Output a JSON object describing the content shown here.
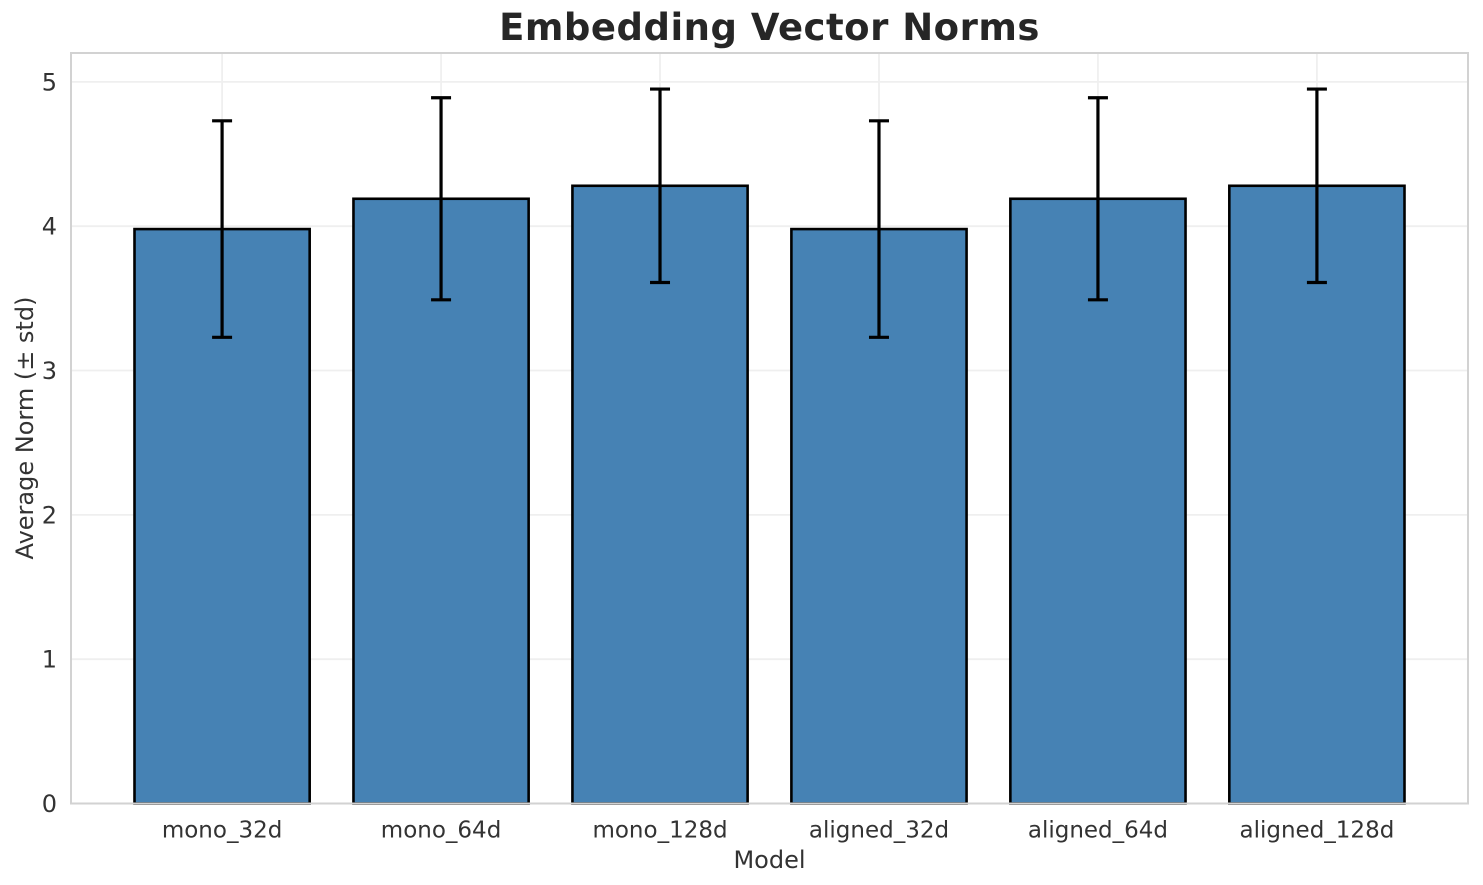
{
  "chart_data": {
    "type": "bar",
    "title": "Embedding Vector Norms",
    "xlabel": "Model",
    "ylabel": "Average Norm (± std)",
    "categories": [
      "mono_32d",
      "mono_64d",
      "mono_128d",
      "aligned_32d",
      "aligned_64d",
      "aligned_128d"
    ],
    "x": [
      0,
      1,
      2,
      3,
      4,
      5
    ],
    "means": [
      3.98,
      4.19,
      4.28,
      3.98,
      4.19,
      4.28
    ],
    "stds": [
      0.75,
      0.7,
      0.67,
      0.75,
      0.7,
      0.67
    ],
    "error_bar_tops": [
      4.73,
      4.89,
      4.95,
      4.73,
      4.89,
      4.95
    ],
    "error_bar_bottoms": [
      3.23,
      3.49,
      3.61,
      3.23,
      3.49,
      3.61
    ],
    "yticks": [
      0,
      1,
      2,
      3,
      4,
      5
    ],
    "ylim": [
      0,
      5.2
    ],
    "xlim": [
      -0.69,
      5.69
    ],
    "bar_width_units": 0.8,
    "grid": true,
    "legend_position": "none",
    "colors": {
      "bar_fill": "#4682b4",
      "bar_edge": "#000000",
      "error_bar": "#000000",
      "grid": "#efefef",
      "spine": "#d2d2d2",
      "tick_text": "#333333",
      "title_text": "#262626"
    }
  }
}
